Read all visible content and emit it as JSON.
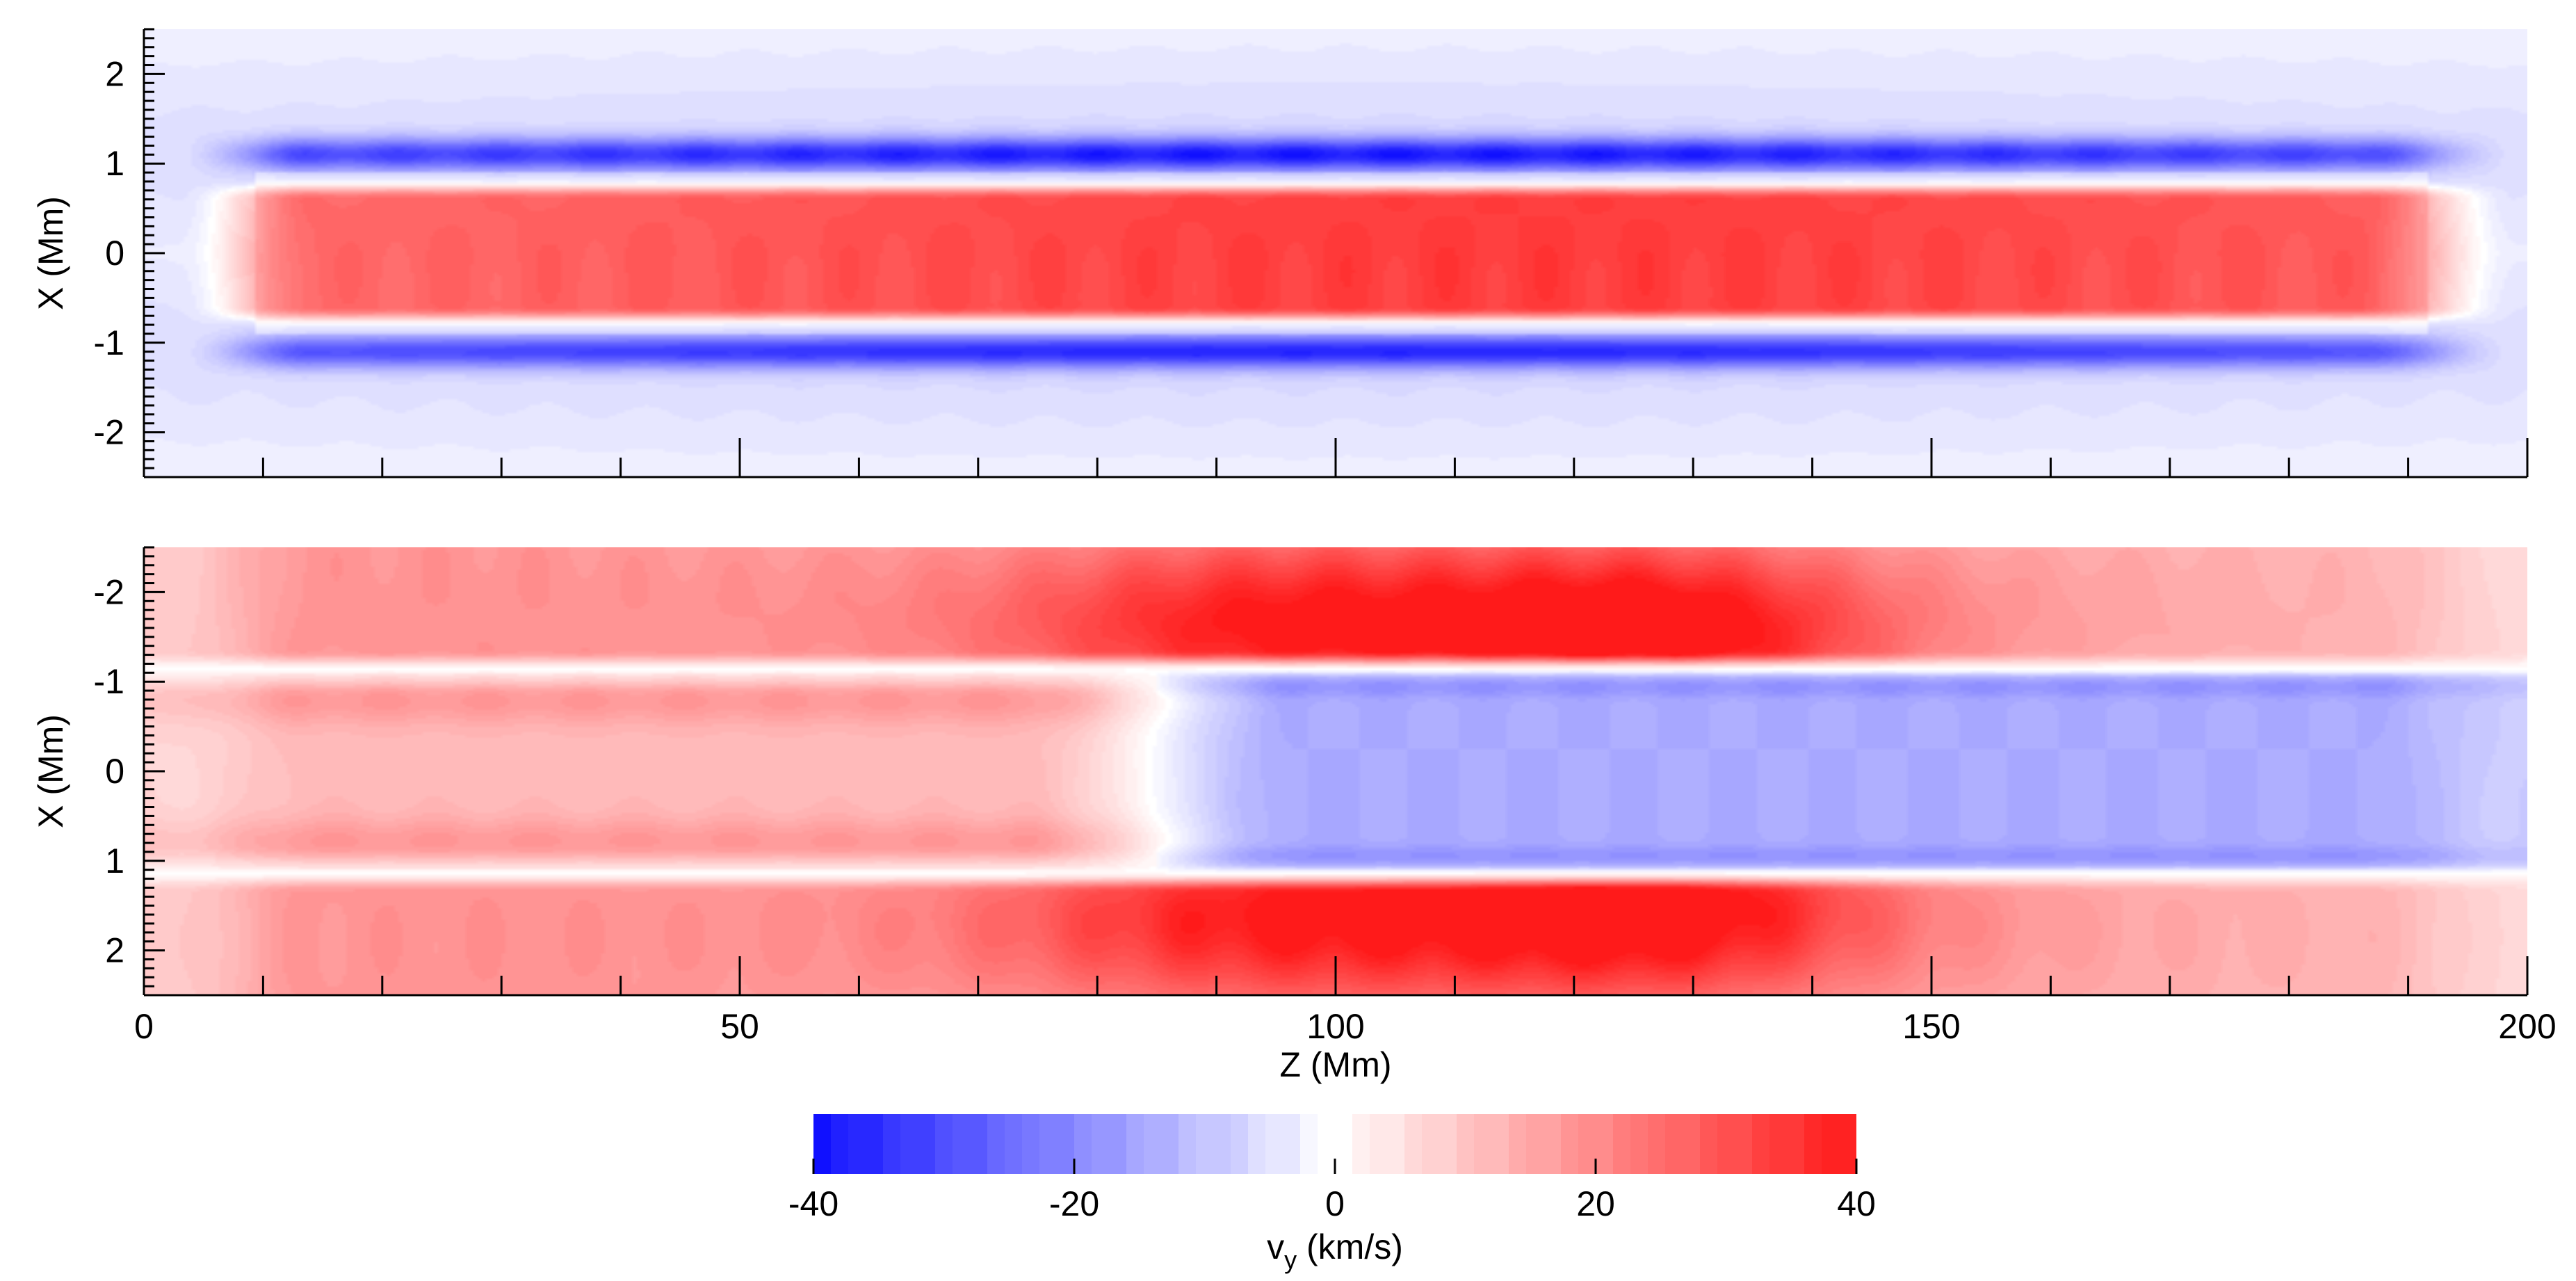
{
  "chart_data": [
    {
      "type": "heatmap",
      "panel": "top",
      "xlabel": "",
      "ylabel": "X (Mm)",
      "xlim": [
        0,
        200
      ],
      "ylim": [
        -2.5,
        2.5
      ],
      "x_ticks": [
        0,
        50,
        100,
        150,
        200
      ],
      "x_tick_labels": [
        "",
        "",
        "",
        "",
        ""
      ],
      "y_ticks": [
        -2,
        -1,
        0,
        1,
        2
      ],
      "y_tick_labels": [
        "-2",
        "-1",
        "0",
        "1",
        "2"
      ],
      "z_units": "km/s",
      "z_range": [
        -40,
        40
      ],
      "description_of_field": "red core centred on X=0 (peak ~35 km/s near Z=110-125), blue bands at X=+1.1 and X=-1.1 (~-30 km/s), weak blue background",
      "bands": [
        {
          "x_center": 0.0,
          "x_halfwidth": 0.6,
          "peak_value": 35,
          "z_center": 115,
          "z_extent": [
            5,
            195
          ]
        },
        {
          "x_center": 1.1,
          "x_halfwidth": 0.13,
          "peak_value": -32,
          "z_center": 100,
          "z_extent": [
            5,
            195
          ]
        },
        {
          "x_center": -1.1,
          "x_halfwidth": 0.13,
          "peak_value": -30,
          "z_center": 100,
          "z_extent": [
            5,
            195
          ]
        }
      ]
    },
    {
      "type": "heatmap",
      "panel": "bottom",
      "xlabel": "Z (Mm)",
      "ylabel": "X (Mm)",
      "xlim": [
        0,
        200
      ],
      "ylim": [
        -2.5,
        2.5
      ],
      "x_ticks": [
        0,
        50,
        100,
        150,
        200
      ],
      "x_tick_labels": [
        "0",
        "50",
        "100",
        "150",
        "200"
      ],
      "y_ticks": [
        -2,
        -1,
        0,
        1,
        2
      ],
      "y_tick_labels": [
        "2",
        "1",
        "0",
        "-1",
        "-2"
      ],
      "z_units": "km/s",
      "z_range": [
        -40,
        40
      ],
      "description_of_field": "outer regions (|X|>1.1) red with peak ~38 km/s near Z=95 and Z=125; core (|X|<1) changes from light red (Z<80) to light blue (Z>90); thin white lines at X=±1.1",
      "outer_peaks": [
        {
          "z": 95,
          "x": 1.6,
          "value": 33
        },
        {
          "z": 127,
          "x": 1.5,
          "value": 38
        },
        {
          "z": 95,
          "x": -1.6,
          "value": 33
        },
        {
          "z": 127,
          "x": -1.5,
          "value": 38
        }
      ],
      "core_values": {
        "z_low": 12,
        "z_high": -14,
        "sign_change_z": 85
      }
    }
  ],
  "colorbar": {
    "min": -40,
    "max": 40,
    "levels": 60,
    "tick_values": [
      -40,
      -20,
      0,
      20,
      40
    ],
    "tick_labels": [
      "-40",
      "-20",
      "0",
      "20",
      "40"
    ],
    "label_main": "v",
    "label_sub": "y",
    "label_units": " (km/s)",
    "color_min": "#1010ff",
    "color_mid": "#ffffff",
    "color_max": "#ff1a1a"
  },
  "labels": {
    "top_ylabel": "X (Mm)",
    "bottom_ylabel": "X (Mm)",
    "bottom_xlabel": "Z (Mm)"
  }
}
